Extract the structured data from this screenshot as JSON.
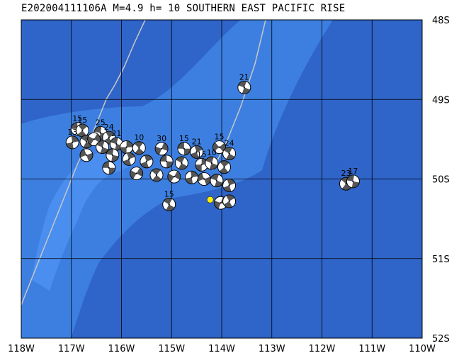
{
  "title": "E202004111106A M=4.9 h= 10 SOUTHERN EAST PACIFIC RISE",
  "map": {
    "lon_range": [
      -118,
      -110
    ],
    "lat_range": [
      -52,
      -48
    ],
    "lon_ticks": [
      {
        "value": -118,
        "label": "118W"
      },
      {
        "value": -117,
        "label": "117W"
      },
      {
        "value": -116,
        "label": "116W"
      },
      {
        "value": -115,
        "label": "115W"
      },
      {
        "value": -114,
        "label": "114W"
      },
      {
        "value": -113,
        "label": "113W"
      },
      {
        "value": -112,
        "label": "112W"
      },
      {
        "value": -111,
        "label": "111W"
      },
      {
        "value": -110,
        "label": "110W"
      }
    ],
    "lat_ticks": [
      {
        "value": -48,
        "label": "48S"
      },
      {
        "value": -49,
        "label": "49S"
      },
      {
        "value": -50,
        "label": "50S"
      },
      {
        "value": -51,
        "label": "51S"
      },
      {
        "value": -52,
        "label": "52S"
      }
    ],
    "colors": {
      "deep_ocean": "#2f64c8",
      "ridge": "#3d7fe0",
      "ridge_crest": "#4a8ef0",
      "grid": "#000000",
      "plate_boundary": "#c8c8c8",
      "mechanism_dark": "#555555",
      "mechanism_light": "#ffffff",
      "epicenter": "#ffee00"
    },
    "epicenter": {
      "lon": -114.23,
      "lat": -50.26
    },
    "events": [
      {
        "lon": -113.55,
        "lat": -48.85,
        "label": "21",
        "rot": 20
      },
      {
        "lon": -116.88,
        "lat": -49.37,
        "label": "15",
        "rot": 0
      },
      {
        "lon": -116.78,
        "lat": -49.39,
        "label": "15",
        "rot": 50
      },
      {
        "lon": -116.42,
        "lat": -49.42,
        "label": "25",
        "rot": 10
      },
      {
        "lon": -116.98,
        "lat": -49.54,
        "label": "13",
        "rot": 80
      },
      {
        "lon": -116.7,
        "lat": -49.53,
        "label": "",
        "rot": 30
      },
      {
        "lon": -116.55,
        "lat": -49.5,
        "label": "",
        "rot": 120
      },
      {
        "lon": -116.25,
        "lat": -49.48,
        "label": "24",
        "rot": 60
      },
      {
        "lon": -116.1,
        "lat": -49.56,
        "label": "21",
        "rot": 15
      },
      {
        "lon": -116.38,
        "lat": -49.6,
        "label": "",
        "rot": 200
      },
      {
        "lon": -115.9,
        "lat": -49.6,
        "label": "",
        "rot": 90
      },
      {
        "lon": -115.65,
        "lat": -49.61,
        "label": "10",
        "rot": 40
      },
      {
        "lon": -115.2,
        "lat": -49.62,
        "label": "30",
        "rot": 110
      },
      {
        "lon": -114.75,
        "lat": -49.62,
        "label": "15",
        "rot": 0
      },
      {
        "lon": -114.5,
        "lat": -49.66,
        "label": "21",
        "rot": 70
      },
      {
        "lon": -114.05,
        "lat": -49.6,
        "label": "15",
        "rot": 140
      },
      {
        "lon": -113.85,
        "lat": -49.68,
        "label": "24",
        "rot": 30
      },
      {
        "lon": -116.7,
        "lat": -49.7,
        "label": "",
        "rot": 160
      },
      {
        "lon": -116.18,
        "lat": -49.7,
        "label": "",
        "rot": 10
      },
      {
        "lon": -115.85,
        "lat": -49.75,
        "label": "",
        "rot": 70
      },
      {
        "lon": -115.5,
        "lat": -49.78,
        "label": "",
        "rot": 250
      },
      {
        "lon": -115.1,
        "lat": -49.78,
        "label": "",
        "rot": 180
      },
      {
        "lon": -114.8,
        "lat": -49.8,
        "label": "",
        "rot": 30
      },
      {
        "lon": -114.4,
        "lat": -49.82,
        "label": "15",
        "rot": 90
      },
      {
        "lon": -114.2,
        "lat": -49.8,
        "label": "10",
        "rot": 200
      },
      {
        "lon": -113.95,
        "lat": -49.85,
        "label": "",
        "rot": 50
      },
      {
        "lon": -116.25,
        "lat": -49.86,
        "label": "",
        "rot": 0
      },
      {
        "lon": -115.7,
        "lat": -49.93,
        "label": "",
        "rot": 120
      },
      {
        "lon": -115.3,
        "lat": -49.95,
        "label": "",
        "rot": 40
      },
      {
        "lon": -114.95,
        "lat": -49.97,
        "label": "",
        "rot": 300
      },
      {
        "lon": -114.6,
        "lat": -49.98,
        "label": "",
        "rot": 80
      },
      {
        "lon": -114.35,
        "lat": -50.0,
        "label": "",
        "rot": 160
      },
      {
        "lon": -114.1,
        "lat": -50.02,
        "label": "",
        "rot": 20
      },
      {
        "lon": -113.85,
        "lat": -50.08,
        "label": "",
        "rot": 250
      },
      {
        "lon": -115.05,
        "lat": -50.32,
        "label": "15",
        "rot": 30
      },
      {
        "lon": -114.02,
        "lat": -50.3,
        "label": "",
        "rot": 110
      },
      {
        "lon": -113.85,
        "lat": -50.28,
        "label": "",
        "rot": 60
      },
      {
        "lon": -111.52,
        "lat": -50.06,
        "label": "23",
        "rot": 40
      },
      {
        "lon": -111.38,
        "lat": -50.03,
        "label": "17",
        "rot": 190
      }
    ]
  }
}
